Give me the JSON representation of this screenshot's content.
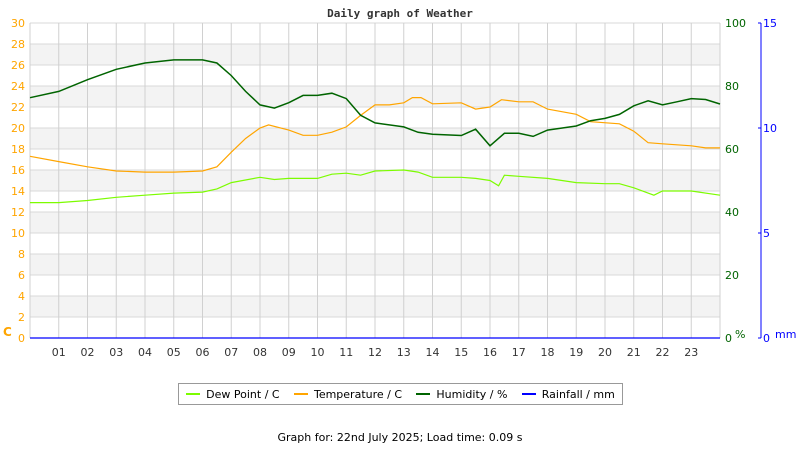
{
  "chart_data": {
    "type": "line",
    "title": "Daily graph of Weather",
    "x_ticks": [
      "01",
      "02",
      "03",
      "04",
      "05",
      "06",
      "07",
      "08",
      "09",
      "10",
      "11",
      "12",
      "13",
      "14",
      "15",
      "16",
      "17",
      "18",
      "19",
      "20",
      "21",
      "22",
      "23"
    ],
    "xlim": [
      0,
      24
    ],
    "left_axis": {
      "unit": "C",
      "ylim": [
        0,
        30
      ],
      "ticks": [
        0,
        2,
        4,
        6,
        8,
        10,
        12,
        14,
        16,
        18,
        20,
        22,
        24,
        26,
        28,
        30
      ],
      "color": "#ffa500"
    },
    "humidity_axis": {
      "unit": "%",
      "ylim": [
        0,
        100
      ],
      "ticks": [
        0,
        20,
        40,
        60,
        80,
        100
      ],
      "color": "#006400"
    },
    "rain_axis": {
      "unit": "mm",
      "ylim": [
        0,
        15
      ],
      "ticks": [
        0,
        5,
        10,
        15
      ],
      "color": "#0000ff"
    },
    "grid": true,
    "legend_placement": "bottom",
    "series": [
      {
        "name": "Dew Point / C",
        "color": "#7cfc00",
        "axis": "left",
        "x": [
          0,
          1,
          2,
          3,
          4,
          5,
          6,
          6.5,
          7,
          8,
          8.5,
          9,
          10,
          10.5,
          11,
          11.5,
          12,
          13,
          13.5,
          14,
          15,
          15.5,
          16,
          16.3,
          16.5,
          17,
          18,
          19,
          20,
          20.5,
          21,
          21.7,
          22,
          23,
          24
        ],
        "y": [
          12.9,
          12.9,
          13.1,
          13.4,
          13.6,
          13.8,
          13.9,
          14.2,
          14.8,
          15.3,
          15.1,
          15.2,
          15.2,
          15.6,
          15.7,
          15.5,
          15.9,
          16.0,
          15.8,
          15.3,
          15.3,
          15.2,
          15.0,
          14.5,
          15.5,
          15.4,
          15.2,
          14.8,
          14.7,
          14.7,
          14.3,
          13.6,
          14.0,
          14.0,
          13.6
        ]
      },
      {
        "name": "Temperature / C",
        "color": "#ffa500",
        "axis": "left",
        "x": [
          0,
          1,
          2,
          3,
          4,
          5,
          6,
          6.5,
          7,
          7.5,
          8,
          8.3,
          9,
          9.5,
          10,
          10.5,
          11,
          11.5,
          12,
          12.5,
          13,
          13.3,
          13.6,
          14,
          15,
          15.5,
          16,
          16.4,
          17,
          17.5,
          18,
          19,
          19.5,
          20.5,
          21,
          21.5,
          22,
          22.5,
          23,
          23.5,
          24
        ],
        "y": [
          17.3,
          16.8,
          16.3,
          15.9,
          15.8,
          15.8,
          15.9,
          16.3,
          17.7,
          19.0,
          20.0,
          20.3,
          19.8,
          19.3,
          19.3,
          19.6,
          20.1,
          21.2,
          22.2,
          22.2,
          22.4,
          22.9,
          22.9,
          22.3,
          22.4,
          21.8,
          22.0,
          22.7,
          22.5,
          22.5,
          21.8,
          21.3,
          20.6,
          20.4,
          19.7,
          18.6,
          18.5,
          18.4,
          18.3,
          18.1,
          18.1
        ]
      },
      {
        "name": "Humidity / %",
        "color": "#006400",
        "axis": "humidity",
        "x": [
          0,
          1,
          2,
          3,
          4,
          5,
          6,
          6.5,
          7,
          7.5,
          8,
          8.5,
          9,
          9.5,
          10,
          10.5,
          11,
          11.5,
          12,
          13,
          13.5,
          14,
          15,
          15.5,
          16,
          16.5,
          17,
          17.5,
          18,
          19,
          19.5,
          20,
          20.5,
          21,
          21.5,
          22,
          22.5,
          23,
          23.5,
          24
        ],
        "y": [
          76.3,
          78.3,
          82,
          85.3,
          87.3,
          88.3,
          88.3,
          87.3,
          83.3,
          78.3,
          74,
          73,
          74.7,
          77,
          77,
          77.7,
          76,
          70.7,
          68.3,
          67,
          65.3,
          64.7,
          64.3,
          66.3,
          61,
          65,
          65,
          64,
          66,
          67.3,
          69,
          69.7,
          71,
          73.7,
          75.3,
          74,
          75,
          76,
          75.7,
          74.3
        ]
      },
      {
        "name": "Rainfall / mm",
        "color": "#0000ff",
        "axis": "rain",
        "x": [
          0,
          24
        ],
        "y": [
          0,
          0
        ]
      }
    ]
  },
  "footer": "Graph for: 22nd July 2025; Load time: 0.09 s"
}
